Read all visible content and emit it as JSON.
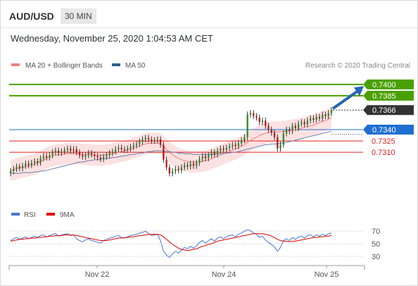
{
  "header": {
    "symbol": "AUD/USD",
    "timeframe": "30 MIN"
  },
  "datetime": "Wednesday, November 25, 2020 1:04:53 AM CET",
  "legend": {
    "ma20_label": "MA 20 + Bollinger Bands",
    "ma50_label": "MA 50",
    "credit": "Research © 2020 Trading Central",
    "ma20_color": "#f08080",
    "ma50_color": "#2f5f8f"
  },
  "rsi_legend": {
    "rsi_label": "RSI",
    "ma9_label": "9MA",
    "rsi_color": "#4a74d0",
    "ma9_color": "#e00000"
  },
  "chart_data": [
    {
      "type": "candlestick",
      "title": "AUD/USD 30 MIN",
      "x_tick_labels": [
        "Nov 22",
        "Nov 24",
        "Nov 25"
      ],
      "ylim": [
        0.7255,
        0.7412
      ],
      "levels": [
        {
          "label": "0.7400",
          "value": 0.74,
          "color": "#4aa000",
          "style": "resistance"
        },
        {
          "label": "0.7385",
          "value": 0.7385,
          "color": "#4aa000",
          "style": "resistance"
        },
        {
          "label": "0.7366",
          "value": 0.7366,
          "color": "#333333",
          "style": "last-price"
        },
        {
          "label": "0.7340",
          "value": 0.734,
          "color": "#1f6fd0",
          "style": "pivot"
        },
        {
          "label": "0.7325",
          "value": 0.7325,
          "color": "#e02020",
          "style": "support"
        },
        {
          "label": "0.7310",
          "value": 0.731,
          "color": "#e02020",
          "style": "support"
        }
      ],
      "price_close": [
        0.7285,
        0.7288,
        0.7291,
        0.7289,
        0.7292,
        0.7295,
        0.7293,
        0.7296,
        0.7298,
        0.7296,
        0.7302,
        0.7305,
        0.7303,
        0.7306,
        0.731,
        0.7312,
        0.7309,
        0.7311,
        0.7313,
        0.7315,
        0.7312,
        0.7314,
        0.731,
        0.7306,
        0.7304,
        0.7306,
        0.7309,
        0.7307,
        0.7305,
        0.7303,
        0.7301,
        0.7304,
        0.7306,
        0.7309,
        0.7311,
        0.7314,
        0.7316,
        0.7314,
        0.7313,
        0.7315,
        0.7317,
        0.7319,
        0.7321,
        0.7324,
        0.7327,
        0.7329,
        0.7327,
        0.7325,
        0.7326,
        0.7327,
        0.732,
        0.73,
        0.729,
        0.7282,
        0.7285,
        0.7288,
        0.7286,
        0.729,
        0.7293,
        0.7291,
        0.7295,
        0.7292,
        0.7296,
        0.7301,
        0.7305,
        0.7302,
        0.7306,
        0.731,
        0.7307,
        0.7312,
        0.7315,
        0.7313,
        0.7316,
        0.7318,
        0.732,
        0.7318,
        0.7322,
        0.7326,
        0.733,
        0.736,
        0.7362,
        0.7358,
        0.7356,
        0.735,
        0.7352,
        0.7345,
        0.734,
        0.7336,
        0.733,
        0.7315,
        0.732,
        0.7335,
        0.734,
        0.7338,
        0.7345,
        0.7342,
        0.7348,
        0.735,
        0.7347,
        0.7352,
        0.7355,
        0.7353,
        0.7357,
        0.7355,
        0.736,
        0.7358,
        0.7362,
        0.7366
      ],
      "ma20_close": [
        0.7286,
        0.7287,
        0.7288,
        0.7289,
        0.729,
        0.7291,
        0.7292,
        0.7293,
        0.7294,
        0.7296,
        0.7298,
        0.73,
        0.7302,
        0.7304,
        0.7305,
        0.7306,
        0.7307,
        0.7307,
        0.7308,
        0.7308,
        0.7308,
        0.7308,
        0.7308,
        0.7308,
        0.7307,
        0.7307,
        0.7307,
        0.7306,
        0.7306,
        0.7306,
        0.7306,
        0.7306,
        0.7307,
        0.7307,
        0.7308,
        0.7309,
        0.731,
        0.7311,
        0.7312,
        0.7313,
        0.7314,
        0.7316,
        0.7317,
        0.7318,
        0.732,
        0.7321,
        0.7322,
        0.7322,
        0.7322,
        0.7322,
        0.7321,
        0.7318,
        0.7314,
        0.731,
        0.7307,
        0.7304,
        0.7302,
        0.73,
        0.7299,
        0.7298,
        0.7297,
        0.7297,
        0.7297,
        0.7297,
        0.7298,
        0.7299,
        0.73,
        0.7301,
        0.7303,
        0.7305,
        0.7306,
        0.7308,
        0.731,
        0.7311,
        0.7313,
        0.7314,
        0.7316,
        0.7318,
        0.732,
        0.7323,
        0.7326,
        0.7328,
        0.733,
        0.7332,
        0.7334,
        0.7335,
        0.7336,
        0.7337,
        0.7337,
        0.7337,
        0.7337,
        0.7338,
        0.7338,
        0.7339,
        0.734,
        0.734,
        0.7341,
        0.7342,
        0.7343,
        0.7344,
        0.7345,
        0.7346,
        0.7348,
        0.7349,
        0.7351,
        0.7352,
        0.7354,
        0.7356
      ],
      "ma50_close": [
        0.7282,
        0.7282,
        0.7282,
        0.7282,
        0.7283,
        0.7283,
        0.7283,
        0.7283,
        0.7284,
        0.7284,
        0.7285,
        0.7285,
        0.7286,
        0.7287,
        0.7288,
        0.7289,
        0.729,
        0.7291,
        0.7292,
        0.7293,
        0.7294,
        0.7295,
        0.7296,
        0.7297,
        0.7297,
        0.7298,
        0.7299,
        0.7299,
        0.73,
        0.73,
        0.7301,
        0.7301,
        0.7302,
        0.7302,
        0.7303,
        0.7303,
        0.7304,
        0.7305,
        0.7305,
        0.7306,
        0.7307,
        0.7307,
        0.7308,
        0.7309,
        0.7309,
        0.731,
        0.7311,
        0.7311,
        0.7312,
        0.7312,
        0.7312,
        0.7312,
        0.7311,
        0.7311,
        0.731,
        0.731,
        0.7309,
        0.7309,
        0.7308,
        0.7308,
        0.7308,
        0.7307,
        0.7307,
        0.7307,
        0.7307,
        0.7307,
        0.7307,
        0.7307,
        0.7307,
        0.7308,
        0.7308,
        0.7308,
        0.7309,
        0.7309,
        0.731,
        0.731,
        0.7311,
        0.7312,
        0.7313,
        0.7314,
        0.7315,
        0.7316,
        0.7317,
        0.7318,
        0.7319,
        0.732,
        0.732,
        0.7321,
        0.7321,
        0.7321,
        0.7322,
        0.7322,
        0.7323,
        0.7324,
        0.7325,
        0.7326,
        0.7327,
        0.7328,
        0.7329,
        0.733,
        0.7331,
        0.7332,
        0.7333,
        0.7334,
        0.7335,
        0.7336,
        0.7337,
        0.7338
      ],
      "bollinger_width": 0.0014,
      "forecast_arrow": {
        "from": 0.7368,
        "to": 0.7394
      }
    },
    {
      "type": "line",
      "title": "RSI",
      "ylim": [
        22,
        78
      ],
      "y_tick_labels": [
        "70",
        "50",
        "30"
      ],
      "y_ticks": [
        70,
        50,
        30
      ],
      "series": [
        {
          "name": "RSI",
          "values": [
            55,
            58,
            60,
            57,
            59,
            61,
            58,
            60,
            62,
            60,
            63,
            64,
            61,
            63,
            65,
            66,
            62,
            64,
            65,
            66,
            63,
            64,
            58,
            55,
            53,
            56,
            58,
            55,
            54,
            52,
            51,
            55,
            57,
            59,
            60,
            62,
            63,
            60,
            59,
            61,
            63,
            64,
            65,
            67,
            68,
            70,
            66,
            63,
            64,
            65,
            55,
            38,
            32,
            28,
            34,
            38,
            35,
            40,
            44,
            42,
            46,
            43,
            47,
            52,
            55,
            51,
            55,
            58,
            54,
            59,
            61,
            58,
            61,
            63,
            64,
            61,
            65,
            67,
            70,
            72,
            71,
            67,
            65,
            60,
            62,
            56,
            52,
            49,
            45,
            38,
            44,
            55,
            58,
            55,
            60,
            57,
            61,
            62,
            59,
            63,
            64,
            61,
            64,
            62,
            65,
            63,
            66,
            67
          ]
        },
        {
          "name": "9MA",
          "values": [
            54,
            55,
            56,
            57,
            57,
            58,
            58,
            59,
            59,
            60,
            60,
            61,
            61,
            62,
            62,
            63,
            63,
            63,
            64,
            64,
            64,
            64,
            63,
            62,
            61,
            60,
            59,
            58,
            57,
            56,
            55,
            55,
            55,
            56,
            57,
            58,
            59,
            59,
            60,
            60,
            61,
            61,
            62,
            63,
            63,
            64,
            65,
            65,
            65,
            65,
            64,
            61,
            57,
            53,
            49,
            46,
            43,
            41,
            40,
            39,
            40,
            41,
            42,
            44,
            46,
            47,
            49,
            50,
            52,
            54,
            55,
            56,
            57,
            58,
            59,
            60,
            61,
            62,
            63,
            64,
            65,
            66,
            66,
            66,
            66,
            65,
            64,
            62,
            60,
            57,
            55,
            54,
            54,
            53,
            54,
            54,
            55,
            56,
            57,
            58,
            59,
            60,
            60,
            61,
            61,
            62,
            62,
            63
          ]
        }
      ]
    }
  ]
}
